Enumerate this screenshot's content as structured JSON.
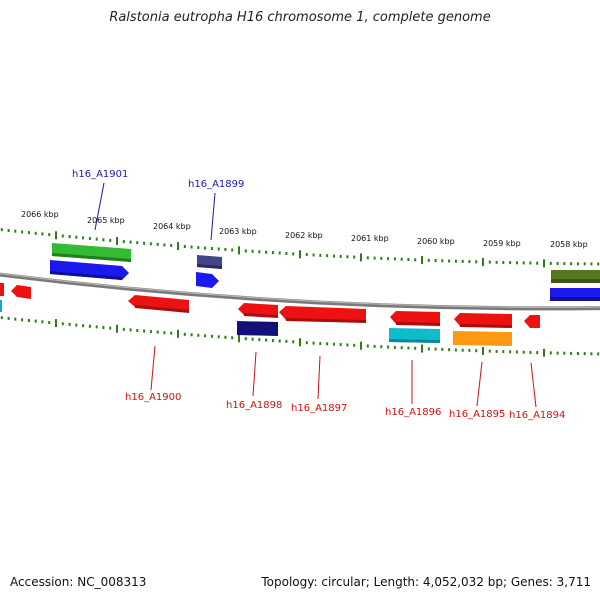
{
  "title": "Ralstonia eutropha H16 chromosome 1, complete genome",
  "footer": {
    "accession": "Accession: NC_008313",
    "summary": "Topology: circular; Length: 4,052,032 bp; Genes: 3,711"
  },
  "colors": {
    "backbone": "#888888",
    "tick": "#2e7d1a",
    "top_label": "#1a1aa8",
    "bottom_label": "#cc1111",
    "red": "#ee1111",
    "blue": "#1a1aee",
    "green": "#33bb33",
    "navy": "#111177",
    "slate": "#444488",
    "cyan": "#11bbcc",
    "orange": "#ff9911",
    "olive": "#557722"
  },
  "kbp_ticks": [
    "2066 kbp",
    "2065 kbp",
    "2064 kbp",
    "2063 kbp",
    "2062 kbp",
    "2061 kbp",
    "2060 kbp",
    "2059 kbp",
    "2058 kbp"
  ],
  "top_labels": [
    "h16_A1901",
    "h16_A1899"
  ],
  "bottom_labels": [
    "h16_A1900",
    "h16_A1898",
    "h16_A1897",
    "h16_A1896",
    "h16_A1895",
    "h16_A1894"
  ]
}
